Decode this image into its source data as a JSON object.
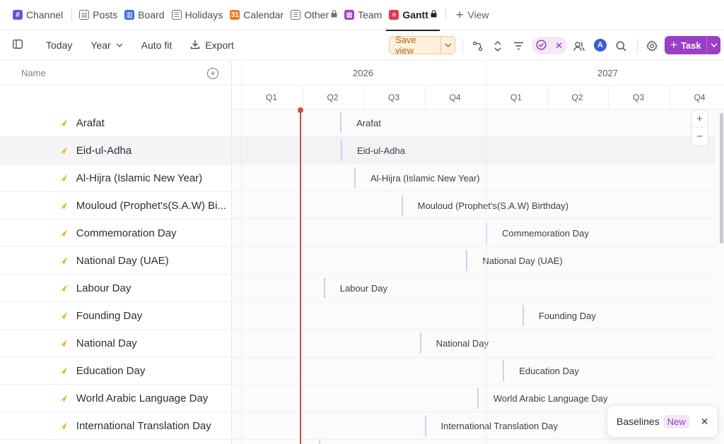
{
  "tabs": [
    {
      "label": "Channel",
      "icon": "hash-icon",
      "color": "#5b5bd6",
      "glyph": "#"
    },
    {
      "label": "Posts",
      "icon": "posts-icon",
      "color": "#6b7079",
      "glyph": "▤"
    },
    {
      "label": "Board",
      "icon": "board-icon",
      "color": "#3d6ae0",
      "glyph": "▥"
    },
    {
      "label": "Holidays",
      "icon": "list-icon",
      "color": "#6b7079",
      "glyph": "☰"
    },
    {
      "label": "Calendar",
      "icon": "calendar-icon",
      "color": "#ec7a1c",
      "glyph": "31"
    },
    {
      "label": "Other",
      "icon": "list-icon",
      "color": "#6b7079",
      "glyph": "☰",
      "locked": true
    },
    {
      "label": "Team",
      "icon": "team-icon",
      "color": "#a23fc5",
      "glyph": "▦"
    },
    {
      "label": "Gantt",
      "icon": "gantt-icon",
      "color": "#e0384a",
      "glyph": "≡",
      "locked": true,
      "active": true
    }
  ],
  "add_view_label": "View",
  "toolbar": {
    "today": "Today",
    "year": "Year",
    "autofit": "Auto fit",
    "export": "Export",
    "save_view": "Save view",
    "avatar_initial": "A",
    "task": "Task"
  },
  "list": {
    "header": "Name",
    "rows": [
      "Arafat",
      "Eid-ul-Adha",
      "Al-Hijra (Islamic New Year)",
      "Mouloud (Prophet's(S.A.W) Bi...",
      "Commemoration Day",
      "National Day (UAE)",
      "Labour Day",
      "Founding Day",
      "National Day",
      "Education Day",
      "World Arabic Language Day",
      "International Translation Day"
    ]
  },
  "gantt": {
    "years": [
      "2026",
      "2027"
    ],
    "quarters": [
      "Q1",
      "Q2",
      "Q3",
      "Q4",
      "Q1",
      "Q2",
      "Q3",
      "Q4"
    ],
    "bars": [
      {
        "label": "Arafat",
        "quarter_index": 1,
        "quarter_fraction": 0.62
      },
      {
        "label": "Eid-ul-Adha",
        "quarter_index": 1,
        "quarter_fraction": 0.63
      },
      {
        "label": "Al-Hijra (Islamic New Year)",
        "quarter_index": 1,
        "quarter_fraction": 0.85
      },
      {
        "label": "Mouloud (Prophet's(S.A.W) Birthday)",
        "quarter_index": 2,
        "quarter_fraction": 0.62
      },
      {
        "label": "Commemoration Day",
        "quarter_index": 4,
        "quarter_fraction": 0.0
      },
      {
        "label": "National Day (UAE)",
        "quarter_index": 3,
        "quarter_fraction": 0.68
      },
      {
        "label": "Labour Day",
        "quarter_index": 1,
        "quarter_fraction": 0.35
      },
      {
        "label": "Founding Day",
        "quarter_index": 4,
        "quarter_fraction": 0.6
      },
      {
        "label": "National Day",
        "quarter_index": 2,
        "quarter_fraction": 0.92
      },
      {
        "label": "Education Day",
        "quarter_index": 4,
        "quarter_fraction": 0.28
      },
      {
        "label": "World Arabic Language Day",
        "quarter_index": 3,
        "quarter_fraction": 0.86
      },
      {
        "label": "International Translation Day",
        "quarter_index": 3,
        "quarter_fraction": 0.0
      }
    ]
  },
  "toast": {
    "label": "Baselines",
    "badge": "New"
  }
}
